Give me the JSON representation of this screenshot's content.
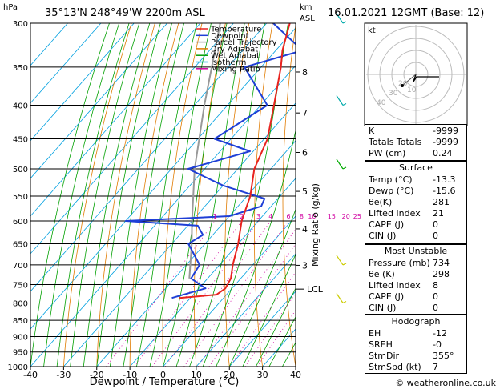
{
  "header": {
    "location": "35°13'N  248°49'W  2200m  ASL",
    "datetime": "16.01.2021  12GMT  (Base: 12)",
    "hpa_label": "hPa",
    "km_label": "km",
    "asl_label": "ASL"
  },
  "legend": [
    {
      "label": "Temperature",
      "color": "#e8231f"
    },
    {
      "label": "Dewpoint",
      "color": "#1f3fd6"
    },
    {
      "label": "Parcel Trajectory",
      "color": "#999999"
    },
    {
      "label": "Dry Adiabat",
      "color": "#e07b00"
    },
    {
      "label": "Wet Adiabat",
      "color": "#00a000"
    },
    {
      "label": "Isotherm",
      "color": "#00a0e0"
    },
    {
      "label": "Mixing Ratio",
      "color": "#d000a0"
    }
  ],
  "footer": {
    "copyright": "© weatheronline.co.uk"
  },
  "hodograph": {
    "kt_label": "kt",
    "ring_labels": [
      "10",
      "20",
      "30",
      "40"
    ]
  },
  "indices_table": [
    {
      "key": "K",
      "value": "-9999"
    },
    {
      "key": "Totals Totals",
      "value": "-9999"
    },
    {
      "key": "PW (cm)",
      "value": "0.24"
    }
  ],
  "surface_table": {
    "title": "Surface",
    "rows": [
      {
        "key": "Temp (°C)",
        "value": "-13.3"
      },
      {
        "key": "Dewp (°C)",
        "value": "-15.6"
      },
      {
        "key": "θe(K)",
        "value": "281"
      },
      {
        "key": "Lifted Index",
        "value": "21"
      },
      {
        "key": "CAPE (J)",
        "value": "0"
      },
      {
        "key": "CIN (J)",
        "value": "0"
      }
    ]
  },
  "unstable_table": {
    "title": "Most Unstable",
    "rows": [
      {
        "key": "Pressure (mb)",
        "value": "734"
      },
      {
        "key": "θe (K)",
        "value": "298"
      },
      {
        "key": "Lifted Index",
        "value": "8"
      },
      {
        "key": "CAPE (J)",
        "value": "0"
      },
      {
        "key": "CIN (J)",
        "value": "0"
      }
    ]
  },
  "hodograph_table": {
    "title": "Hodograph",
    "rows": [
      {
        "key": "EH",
        "value": "-12"
      },
      {
        "key": "SREH",
        "value": "-0"
      },
      {
        "key": "StmDir",
        "value": "355°"
      },
      {
        "key": "StmSpd (kt)",
        "value": "7"
      }
    ]
  },
  "chart_data": {
    "type": "line",
    "title": "Skew-T log-P diagram",
    "xlabel": "Dewpoint / Temperature (°C)",
    "ylabel": "hPa",
    "right_axis_label": "Mixing Ratio (g/kg)",
    "xlim": [
      -40,
      40
    ],
    "ylim": [
      1000,
      300
    ],
    "x_ticks": [
      -40,
      -30,
      -20,
      -10,
      0,
      10,
      20,
      30,
      40
    ],
    "pressure_levels": [
      300,
      350,
      400,
      450,
      500,
      550,
      600,
      650,
      700,
      750,
      800,
      850,
      900,
      950,
      1000
    ],
    "km_ticks": [
      {
        "label": "8",
        "p": 356
      },
      {
        "label": "7",
        "p": 411
      },
      {
        "label": "6",
        "p": 472
      },
      {
        "label": "5",
        "p": 541
      },
      {
        "label": "4",
        "p": 617
      },
      {
        "label": "3",
        "p": 701
      }
    ],
    "lcl": {
      "label": "LCL",
      "p": 762
    },
    "mixing_ratio_labels": [
      1,
      2,
      3,
      4,
      6,
      8,
      10,
      15,
      20,
      25
    ],
    "series": [
      {
        "name": "Temperature",
        "color": "#e8231f",
        "points": [
          {
            "p": 786,
            "t": -13.3
          },
          {
            "p": 777,
            "t": -3
          },
          {
            "p": 760,
            "t": -2
          },
          {
            "p": 734,
            "t": -3
          },
          {
            "p": 700,
            "t": -6
          },
          {
            "p": 650,
            "t": -10
          },
          {
            "p": 600,
            "t": -15
          },
          {
            "p": 550,
            "t": -19
          },
          {
            "p": 500,
            "t": -25
          },
          {
            "p": 450,
            "t": -29
          },
          {
            "p": 400,
            "t": -36
          },
          {
            "p": 350,
            "t": -44
          },
          {
            "p": 330,
            "t": -48
          },
          {
            "p": 300,
            "t": -53
          }
        ]
      },
      {
        "name": "Dewpoint",
        "color": "#1f3fd6",
        "points": [
          {
            "p": 786,
            "t": -15.6
          },
          {
            "p": 760,
            "t": -8
          },
          {
            "p": 734,
            "t": -15
          },
          {
            "p": 700,
            "t": -16
          },
          {
            "p": 650,
            "t": -25
          },
          {
            "p": 630,
            "t": -23
          },
          {
            "p": 610,
            "t": -27
          },
          {
            "p": 600,
            "t": -50
          },
          {
            "p": 590,
            "t": -20
          },
          {
            "p": 570,
            "t": -13
          },
          {
            "p": 555,
            "t": -14
          },
          {
            "p": 530,
            "t": -30
          },
          {
            "p": 500,
            "t": -45
          },
          {
            "p": 470,
            "t": -31
          },
          {
            "p": 450,
            "t": -45
          },
          {
            "p": 400,
            "t": -38
          },
          {
            "p": 350,
            "t": -55
          },
          {
            "p": 330,
            "t": -42
          },
          {
            "p": 300,
            "t": -58
          }
        ]
      },
      {
        "name": "Parcel Trajectory",
        "color": "#999999",
        "points": [
          {
            "p": 734,
            "t": -15.5
          },
          {
            "p": 650,
            "t": -24
          },
          {
            "p": 600,
            "t": -30
          },
          {
            "p": 500,
            "t": -43
          },
          {
            "p": 400,
            "t": -57
          },
          {
            "p": 300,
            "t": -74
          }
        ]
      }
    ]
  }
}
